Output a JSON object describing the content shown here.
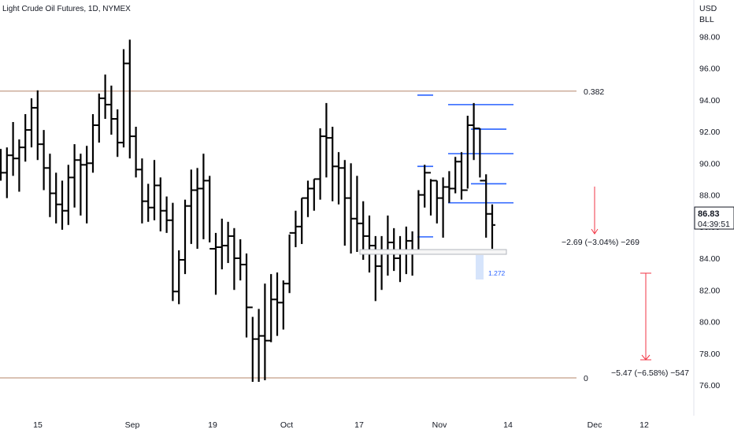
{
  "chart_data": {
    "type": "ohlc",
    "title": "Light Crude Oil Futures, 1D, NYMEX",
    "currency": "USD",
    "unit": "BLL",
    "y_ticks": [
      76.0,
      78.0,
      80.0,
      82.0,
      84.0,
      86.0,
      88.0,
      90.0,
      92.0,
      94.0,
      96.0,
      98.0
    ],
    "y_tick_labels": [
      "76.00",
      "78.00",
      "80.00",
      "82.00",
      "84.00",
      "86.00",
      "88.00",
      "90.00",
      "92.00",
      "94.00",
      "96.00",
      "98.00"
    ],
    "ylim": [
      74.5,
      99.5
    ],
    "x_labels": [
      "15",
      "Sep",
      "19",
      "Oct",
      "17",
      "Nov",
      "14",
      "Dec",
      "12"
    ],
    "grid": false,
    "bars": [
      [
        90.5,
        90.9,
        88.9,
        89.4
      ],
      [
        89.4,
        91.0,
        87.8,
        90.5
      ],
      [
        90.5,
        92.6,
        89.2,
        90.3
      ],
      [
        90.3,
        91.5,
        88.2,
        91.0
      ],
      [
        91.0,
        93.1,
        90.1,
        92.1
      ],
      [
        92.1,
        94.1,
        91.0,
        93.5
      ],
      [
        93.5,
        94.6,
        90.2,
        91.2
      ],
      [
        91.2,
        92.1,
        88.3,
        89.7
      ],
      [
        89.7,
        90.6,
        86.6,
        88.1
      ],
      [
        88.1,
        89.4,
        86.2,
        87.4
      ],
      [
        87.4,
        88.9,
        85.8,
        87.0
      ],
      [
        87.0,
        89.9,
        86.1,
        89.1
      ],
      [
        89.1,
        91.2,
        87.2,
        90.2
      ],
      [
        90.2,
        90.6,
        86.7,
        89.9
      ],
      [
        89.9,
        91.1,
        86.2,
        90.0
      ],
      [
        90.0,
        93.1,
        89.4,
        92.4
      ],
      [
        92.4,
        94.4,
        91.3,
        94.1
      ],
      [
        94.1,
        95.6,
        92.8,
        93.7
      ],
      [
        93.7,
        94.9,
        91.8,
        92.8
      ],
      [
        92.8,
        93.4,
        90.4,
        91.3
      ],
      [
        91.3,
        97.2,
        91.0,
        96.3
      ],
      [
        96.3,
        97.8,
        90.3,
        91.7
      ],
      [
        91.7,
        92.3,
        89.1,
        89.6
      ],
      [
        89.6,
        90.3,
        86.2,
        87.6
      ],
      [
        87.6,
        88.7,
        86.3,
        87.2
      ],
      [
        87.2,
        90.2,
        86.4,
        88.6
      ],
      [
        88.6,
        89.1,
        85.7,
        87.0
      ],
      [
        87.0,
        87.9,
        85.6,
        86.4
      ],
      [
        86.4,
        87.5,
        81.3,
        81.9
      ],
      [
        81.9,
        84.5,
        81.1,
        83.9
      ],
      [
        83.9,
        87.7,
        83.0,
        87.3
      ],
      [
        87.3,
        89.6,
        84.9,
        88.3
      ],
      [
        88.3,
        89.7,
        84.6,
        88.4
      ],
      [
        88.4,
        90.6,
        85.2,
        88.9
      ],
      [
        88.9,
        89.2,
        85.0,
        84.6
      ],
      [
        84.6,
        85.6,
        81.7,
        84.7
      ],
      [
        84.7,
        86.5,
        83.3,
        84.8
      ],
      [
        84.8,
        86.3,
        83.7,
        85.4
      ],
      [
        85.4,
        85.9,
        82.0,
        84.0
      ],
      [
        84.0,
        85.2,
        82.6,
        83.6
      ],
      [
        83.6,
        84.3,
        79.0,
        80.9
      ],
      [
        80.9,
        80.3,
        76.2,
        78.9
      ],
      [
        78.9,
        80.8,
        76.2,
        79.1
      ],
      [
        79.1,
        82.4,
        76.3,
        78.8
      ],
      [
        78.8,
        83.0,
        78.7,
        81.4
      ],
      [
        81.4,
        83.1,
        79.1,
        81.2
      ],
      [
        81.2,
        82.6,
        79.5,
        82.4
      ],
      [
        82.4,
        85.5,
        81.8,
        85.6
      ],
      [
        85.6,
        87.0,
        84.7,
        86.0
      ],
      [
        86.0,
        87.8,
        84.9,
        87.8
      ],
      [
        87.8,
        88.9,
        86.6,
        88.4
      ],
      [
        88.4,
        89.0,
        87.0,
        89.0
      ],
      [
        89.0,
        92.2,
        87.7,
        91.7
      ],
      [
        91.7,
        93.8,
        89.1,
        91.6
      ],
      [
        91.6,
        92.3,
        87.6,
        89.8
      ],
      [
        89.8,
        90.7,
        87.4,
        89.7
      ],
      [
        89.7,
        90.2,
        84.8,
        87.8
      ],
      [
        87.8,
        90.0,
        84.3,
        86.5
      ],
      [
        86.5,
        89.2,
        84.4,
        86.2
      ],
      [
        86.2,
        87.6,
        83.9,
        85.4
      ],
      [
        85.4,
        86.7,
        83.1,
        84.8
      ],
      [
        84.8,
        85.4,
        81.3,
        83.5
      ],
      [
        83.5,
        85.4,
        82.0,
        84.3
      ],
      [
        84.3,
        86.7,
        82.9,
        85.0
      ],
      [
        85.0,
        85.9,
        83.2,
        84.0
      ],
      [
        84.0,
        85.4,
        82.5,
        84.4
      ],
      [
        84.4,
        86.0,
        83.0,
        85.1
      ],
      [
        85.1,
        85.7,
        82.9,
        84.3
      ],
      [
        84.3,
        88.3,
        84.4,
        88.0
      ],
      [
        88.0,
        89.9,
        87.2,
        89.4
      ],
      [
        89.4,
        89.0,
        86.7,
        88.9
      ],
      [
        88.9,
        88.9,
        86.2,
        87.8
      ],
      [
        87.8,
        89.1,
        85.3,
        88.5
      ],
      [
        88.5,
        89.5,
        87.5,
        88.4
      ],
      [
        88.4,
        90.4,
        88.1,
        90.1
      ],
      [
        90.1,
        90.7,
        87.7,
        88.3
      ],
      [
        88.3,
        93.0,
        88.4,
        92.4
      ],
      [
        92.4,
        93.8,
        90.2,
        92.2
      ],
      [
        92.2,
        92.2,
        89.1,
        88.9
      ],
      [
        88.9,
        89.3,
        85.3,
        86.8
      ],
      [
        86.8,
        87.4,
        84.6,
        86.1
      ]
    ],
    "fib_levels": [
      {
        "label": "0.382",
        "value": 94.55,
        "color": "#b5866a"
      },
      {
        "label": "0",
        "value": 76.45,
        "color": "#b5866a"
      }
    ],
    "blue_levels": [
      94.3,
      93.7,
      92.15,
      90.6,
      89.8,
      88.7,
      87.5,
      85.35
    ],
    "extension_label": "1.272",
    "measure_1": "−2.69 (−3.04%) −269",
    "measure_2": "−5.47 (−6.58%) −547",
    "last_price": "86.83",
    "last_price_value": 86.83,
    "countdown": "04:39:51",
    "accent_color": "#2962ff",
    "measure_color": "#f23645"
  }
}
